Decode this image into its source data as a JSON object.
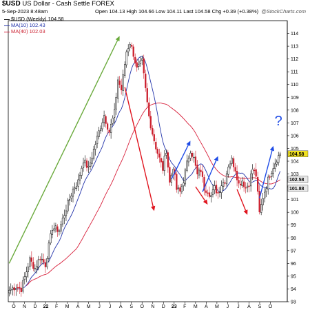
{
  "header": {
    "symbol": "$USD",
    "name": "US Dollar - Cash Settle FOREX",
    "date_line": "5-Sep-2023 8:48am",
    "quote_line": "Open 104.13  High 104.66  Low 104.11  Last 104.58  Chg +0.39 (+0.38%)",
    "watermark": "@StockCharts.com",
    "legend_price": "$USD (Weekly) 104.58",
    "legend_ma10": "MA(10) 102.43",
    "legend_ma40": "MA(40) 102.03"
  },
  "colors": {
    "up": "#000000",
    "down": "#cc1f2d",
    "ma10": "#2233aa",
    "ma40": "#d81f3a",
    "annot_green": "#6aaa3c",
    "annot_red": "#e0141e",
    "annot_blue": "#1e4be6",
    "last_price_box": "#f0e020",
    "ma_tag_box": "#e8e8e8"
  },
  "chart_data": {
    "type": "candlestick",
    "timeframe": "weekly",
    "y_axis_side": "right",
    "ylim": [
      93,
      115
    ],
    "y_ticks": [
      "93",
      "94",
      "95",
      "96",
      "97",
      "98",
      "99",
      "100",
      "101",
      "102",
      "103",
      "104",
      "105",
      "106",
      "107",
      "108",
      "109",
      "110",
      "111",
      "112",
      "113",
      "114"
    ],
    "x_tick_labels": [
      "O",
      "N",
      "D",
      "22",
      "F",
      "M",
      "A",
      "M",
      "J",
      "J",
      "A",
      "S",
      "O",
      "N",
      "D",
      "23",
      "F",
      "M",
      "A",
      "M",
      "J",
      "J",
      "A",
      "S",
      "O"
    ],
    "grid": false,
    "close_keypoints": [
      [
        0,
        93.9
      ],
      [
        4,
        94.2
      ],
      [
        7,
        94.0
      ],
      [
        12,
        96.3
      ],
      [
        15,
        95.6
      ],
      [
        18,
        96.5
      ],
      [
        21,
        95.9
      ],
      [
        25,
        98.8
      ],
      [
        29,
        98.6
      ],
      [
        33,
        100.3
      ],
      [
        37,
        101.8
      ],
      [
        40,
        102.4
      ],
      [
        43,
        104.1
      ],
      [
        46,
        103.4
      ],
      [
        49,
        104.9
      ],
      [
        52,
        106.3
      ],
      [
        55,
        107.6
      ],
      [
        58,
        106.3
      ],
      [
        61,
        107.8
      ],
      [
        63,
        110.4
      ],
      [
        65,
        109.6
      ],
      [
        68,
        112.6
      ],
      [
        70,
        113.3
      ],
      [
        72,
        112.4
      ],
      [
        74,
        111.2
      ],
      [
        77,
        111.8
      ],
      [
        79,
        109.6
      ],
      [
        81,
        107.5
      ],
      [
        83,
        106.2
      ],
      [
        85,
        105.1
      ],
      [
        87,
        104.2
      ],
      [
        89,
        103.4
      ],
      [
        91,
        104.9
      ],
      [
        93,
        102.3
      ],
      [
        95,
        103.6
      ],
      [
        97,
        101.8
      ],
      [
        99,
        101.6
      ],
      [
        101,
        102.5
      ],
      [
        103,
        103.8
      ],
      [
        105,
        104.9
      ],
      [
        107,
        104.2
      ],
      [
        109,
        102.9
      ],
      [
        111,
        103.3
      ],
      [
        113,
        101.9
      ],
      [
        115,
        101.7
      ],
      [
        117,
        101.3
      ],
      [
        119,
        101.9
      ],
      [
        121,
        101.5
      ],
      [
        123,
        102.2
      ],
      [
        125,
        102.5
      ],
      [
        127,
        103.7
      ],
      [
        129,
        104.1
      ],
      [
        131,
        103.4
      ],
      [
        133,
        102.2
      ],
      [
        135,
        102.5
      ],
      [
        137,
        101.9
      ],
      [
        139,
        102.3
      ],
      [
        141,
        103.4
      ],
      [
        143,
        102.9
      ],
      [
        145,
        99.9
      ],
      [
        147,
        101.2
      ],
      [
        149,
        102.1
      ],
      [
        151,
        103.0
      ],
      [
        153,
        103.6
      ],
      [
        155,
        104.2
      ],
      [
        157,
        104.58
      ]
    ],
    "series": [
      {
        "name": "MA(10)",
        "last": 102.43
      },
      {
        "name": "MA(40)",
        "last": 102.03
      }
    ],
    "last_price": 104.58,
    "annotations": [
      {
        "type": "arrow",
        "color": "green",
        "from": [
          0,
          96.0
        ],
        "to": [
          64,
          113.8
        ]
      },
      {
        "type": "arrow",
        "color": "red",
        "from": [
          67,
          109.8
        ],
        "to": [
          84,
          100.1
        ]
      },
      {
        "type": "arrow",
        "color": "blue",
        "from": [
          94,
          102.6
        ],
        "to": [
          105,
          105.6
        ]
      },
      {
        "type": "arrow",
        "color": "red",
        "from": [
          108,
          102.0
        ],
        "to": [
          115,
          100.6
        ]
      },
      {
        "type": "arrow",
        "color": "blue",
        "from": [
          112,
          101.6
        ],
        "to": [
          121,
          104.4
        ]
      },
      {
        "type": "arrow",
        "color": "red",
        "from": [
          132,
          101.8
        ],
        "to": [
          138,
          99.8
        ]
      },
      {
        "type": "arrow",
        "color": "blue",
        "from": [
          145,
          101.1
        ],
        "to": [
          153,
          105.2
        ]
      },
      {
        "type": "text",
        "color": "blue",
        "text": "?",
        "at": [
          156,
          106.8
        ]
      }
    ]
  }
}
